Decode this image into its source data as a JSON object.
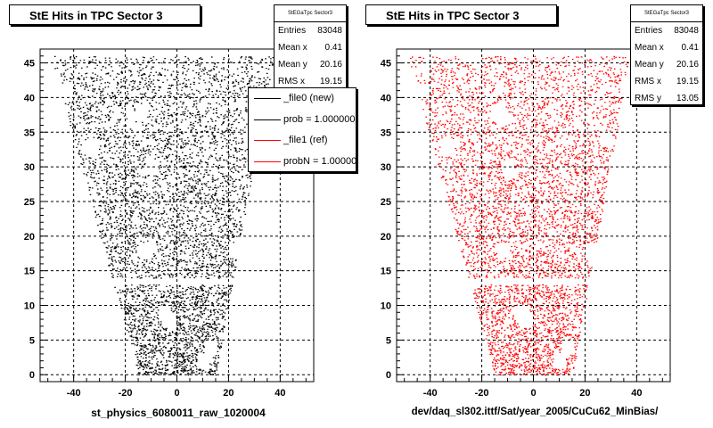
{
  "chart_data": [
    {
      "type": "scatter",
      "title": "StE Hits in TPC Sector 3",
      "xlabel": "st_physics_6080011_raw_1020004",
      "ylabel": "",
      "xlim": [
        -53,
        53
      ],
      "ylim": [
        -1,
        47
      ],
      "xticks": [
        "-40",
        "-20",
        "0",
        "20",
        "40"
      ],
      "yticks": [
        "0",
        "5",
        "10",
        "15",
        "20",
        "25",
        "30",
        "35",
        "40",
        "45"
      ],
      "grid": true,
      "point_color": "#000000",
      "stats": {
        "name": "StEGaTpc Sector3",
        "rows": [
          {
            "label": "Entries",
            "value": "83048"
          },
          {
            "label": "Mean x",
            "value": "0.41"
          },
          {
            "label": "Mean y",
            "value": "20.16"
          },
          {
            "label": "RMS x",
            "value": "19.15"
          }
        ]
      },
      "legend": {
        "position": "right",
        "entries": [
          {
            "label": "_file0 (new)",
            "color": "#000000"
          },
          {
            "label": "prob = 1.000000",
            "color": "#000000"
          },
          {
            "label": "_file1 (ref)",
            "color": "#ff0000"
          },
          {
            "label": "probN = 1.000000",
            "color": "#ff0000"
          }
        ]
      },
      "series": [
        {
          "entries": 83048,
          "description": "hit density per TPC pad row; rows 0-45, trapezoidal sector shape",
          "rows_x_range": {
            "y0_left": -15,
            "y0_right": 15,
            "y45_left": -48,
            "y45_right": 37
          },
          "gap_y": 13.5
        }
      ]
    },
    {
      "type": "scatter",
      "title": "StE Hits in TPC Sector 3",
      "xlabel": "dev/daq_sl302.ittf/Sat/year_2005/CuCu62_MinBias/",
      "ylabel": "",
      "xlim": [
        -53,
        53
      ],
      "ylim": [
        -1,
        47
      ],
      "xticks": [
        "-40",
        "-20",
        "0",
        "20",
        "40"
      ],
      "yticks": [
        "0",
        "5",
        "10",
        "15",
        "20",
        "25",
        "30",
        "35",
        "40",
        "45"
      ],
      "grid": true,
      "point_color": "#ff0000",
      "stats": {
        "name": "StEGaTpc Sector3",
        "rows": [
          {
            "label": "Entries",
            "value": "83048"
          },
          {
            "label": "Mean x",
            "value": "0.41"
          },
          {
            "label": "Mean y",
            "value": "20.16"
          },
          {
            "label": "RMS x",
            "value": "19.15"
          },
          {
            "label": "RMS y",
            "value": "13.05"
          }
        ]
      },
      "series": [
        {
          "entries": 83048,
          "rows_x_range": {
            "y0_left": -15,
            "y0_right": 15,
            "y45_left": -48,
            "y45_right": 37
          },
          "gap_y": 13.5
        }
      ]
    }
  ]
}
